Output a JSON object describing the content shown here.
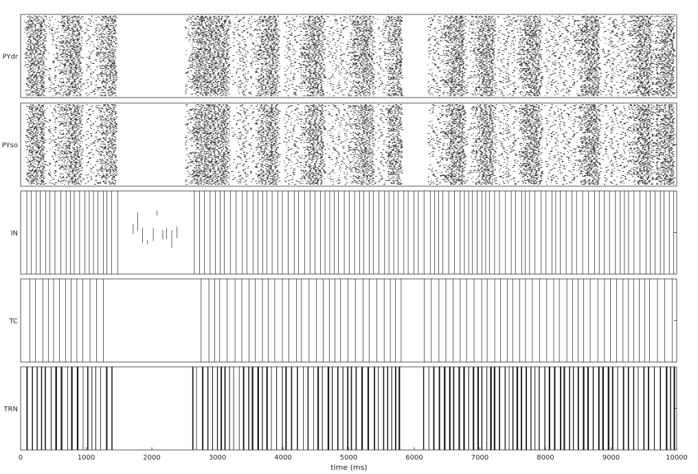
{
  "chart_data": {
    "type": "raster",
    "xlabel": "time (ms)",
    "xlim": [
      0,
      10000
    ],
    "xticks": [
      0,
      1000,
      2000,
      3000,
      4000,
      5000,
      6000,
      7000,
      8000,
      9000,
      10000
    ],
    "grid": false,
    "legend": "none",
    "colors": {
      "spike": "#1a1a1a",
      "axis": "#262626",
      "background": "#ffffff"
    },
    "panels": [
      {
        "name": "PYdr",
        "style": "dots",
        "neurons": 100,
        "active_windows_ms": [
          [
            50,
            1450
          ],
          [
            2500,
            3950
          ],
          [
            4000,
            5800
          ],
          [
            6200,
            9950
          ]
        ],
        "burst_centers_ms": [
          150,
          700,
          1300,
          2700,
          2950,
          3700,
          4400,
          5150,
          5700,
          6550,
          7000,
          7700,
          8600,
          9400,
          9750
        ]
      },
      {
        "name": "PYso",
        "style": "dots",
        "neurons": 100,
        "active_windows_ms": [
          [
            50,
            1450
          ],
          [
            2500,
            3950
          ],
          [
            4000,
            5800
          ],
          [
            6200,
            9950
          ]
        ],
        "burst_centers_ms": [
          150,
          700,
          1300,
          2700,
          2950,
          3700,
          4400,
          5150,
          5700,
          6550,
          7000,
          7700,
          8600,
          9400,
          9750
        ]
      },
      {
        "name": "IN",
        "style": "lines",
        "period_ms": [
          55,
          95
        ],
        "active_windows_ms": [
          [
            30,
            1560
          ],
          [
            2620,
            6150
          ],
          [
            6200,
            9980
          ]
        ],
        "sparse_windows_ms": [
          [
            1650,
            2400
          ]
        ]
      },
      {
        "name": "TC",
        "style": "lines",
        "period_ms": [
          75,
          120
        ],
        "active_windows_ms": [
          [
            60,
            1340
          ],
          [
            2650,
            5880
          ],
          [
            6150,
            9980
          ]
        ],
        "sparse_windows_ms": []
      },
      {
        "name": "TRN",
        "style": "lines-dense",
        "period_ms": [
          55,
          95
        ],
        "active_windows_ms": [
          [
            40,
            1400
          ],
          [
            2550,
            5800
          ],
          [
            6100,
            9980
          ]
        ],
        "sparse_windows_ms": []
      }
    ]
  }
}
